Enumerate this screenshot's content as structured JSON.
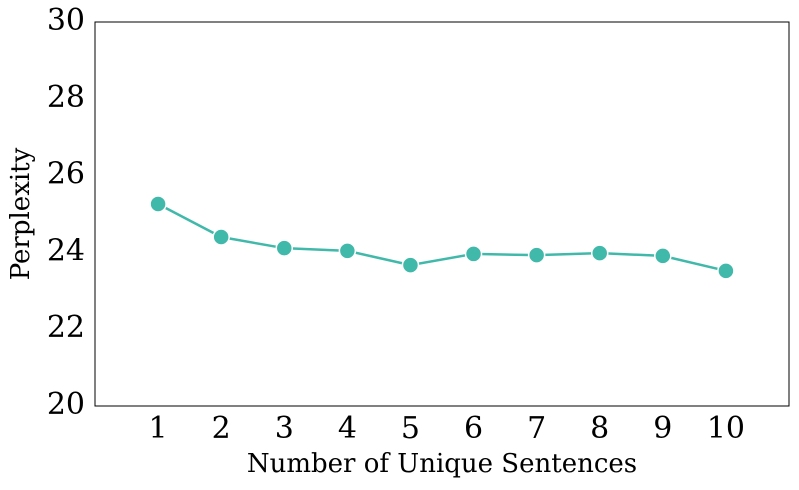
{
  "chart_data": {
    "type": "line",
    "x_label": "Number of Unique Sentences",
    "y_label": "Perplexity",
    "x": [
      1,
      2,
      3,
      4,
      5,
      6,
      7,
      8,
      9,
      10
    ],
    "series": [
      {
        "name": "Perplexity",
        "color": "#40b9aa",
        "values": [
          25.26,
          24.4,
          24.11,
          24.04,
          23.67,
          23.96,
          23.93,
          23.98,
          23.91,
          23.52
        ]
      }
    ],
    "xlim": [
      0,
      11
    ],
    "xticks": [
      1,
      2,
      3,
      4,
      5,
      6,
      7,
      8,
      9,
      10
    ],
    "ylim": [
      20,
      30
    ],
    "yticks": [
      20,
      22,
      24,
      26,
      28,
      30
    ],
    "grid": false
  }
}
